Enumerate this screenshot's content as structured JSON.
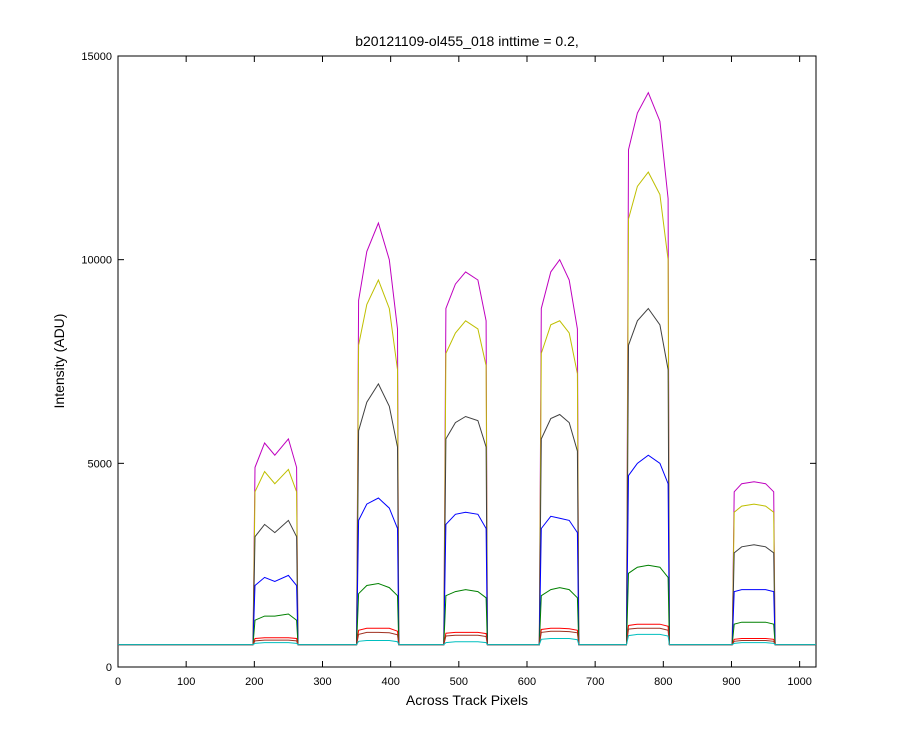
{
  "chart_data": {
    "type": "line",
    "title": "b20121109-ol455_018 inttime = 0.2,",
    "xlabel": "Across Track Pixels",
    "ylabel": "Intensity (ADU)",
    "x": [
      0,
      198,
      201,
      215,
      230,
      250,
      262,
      264,
      350,
      353,
      365,
      382,
      398,
      410,
      412,
      478,
      481,
      495,
      510,
      528,
      540,
      542,
      618,
      621,
      635,
      648,
      662,
      674,
      676,
      746,
      749,
      762,
      778,
      795,
      807,
      809,
      901,
      904,
      915,
      933,
      950,
      962,
      964,
      1024
    ],
    "series": [
      {
        "color": "#bf00bf",
        "values": [
          550,
          550,
          4900,
          5500,
          5200,
          5600,
          4900,
          550,
          550,
          9000,
          10200,
          10900,
          10000,
          8300,
          550,
          550,
          8800,
          9400,
          9700,
          9500,
          8500,
          550,
          550,
          8800,
          9700,
          10000,
          9500,
          8300,
          550,
          550,
          12700,
          13600,
          14100,
          13400,
          11500,
          550,
          550,
          4300,
          4500,
          4550,
          4500,
          4300,
          550,
          550
        ]
      },
      {
        "color": "#bfbf00",
        "values": [
          550,
          550,
          4300,
          4800,
          4500,
          4850,
          4300,
          550,
          550,
          7900,
          8900,
          9500,
          8800,
          7300,
          550,
          550,
          7700,
          8200,
          8500,
          8300,
          7400,
          550,
          550,
          7700,
          8400,
          8500,
          8200,
          7200,
          550,
          550,
          11000,
          11800,
          12150,
          11600,
          10000,
          550,
          550,
          3800,
          3950,
          4000,
          3950,
          3800,
          550,
          550
        ]
      },
      {
        "color": "#404040",
        "values": [
          550,
          550,
          3200,
          3500,
          3300,
          3600,
          3200,
          550,
          550,
          5800,
          6500,
          6950,
          6400,
          5400,
          550,
          550,
          5600,
          6000,
          6150,
          6050,
          5400,
          550,
          550,
          5600,
          6100,
          6200,
          6000,
          5300,
          550,
          550,
          7900,
          8500,
          8800,
          8400,
          7300,
          550,
          550,
          2800,
          2950,
          3000,
          2950,
          2800,
          550,
          550
        ]
      },
      {
        "color": "#0000ff",
        "values": [
          550,
          550,
          2000,
          2200,
          2100,
          2250,
          2000,
          550,
          550,
          3600,
          4000,
          4150,
          3900,
          3400,
          550,
          550,
          3500,
          3750,
          3800,
          3750,
          3400,
          550,
          550,
          3400,
          3700,
          3650,
          3600,
          3300,
          550,
          550,
          4700,
          5000,
          5200,
          5000,
          4500,
          550,
          550,
          1850,
          1900,
          1900,
          1900,
          1850,
          550,
          550
        ]
      },
      {
        "color": "#008000",
        "values": [
          550,
          550,
          1150,
          1250,
          1250,
          1300,
          1150,
          550,
          550,
          1800,
          2000,
          2050,
          1950,
          1750,
          550,
          550,
          1750,
          1850,
          1900,
          1850,
          1700,
          550,
          550,
          1750,
          1900,
          1950,
          1900,
          1700,
          550,
          550,
          2300,
          2450,
          2500,
          2450,
          2200,
          550,
          550,
          1050,
          1100,
          1100,
          1100,
          1050,
          550,
          550
        ]
      },
      {
        "color": "#ff0000",
        "values": [
          550,
          550,
          700,
          720,
          720,
          720,
          700,
          550,
          550,
          900,
          950,
          950,
          950,
          880,
          550,
          550,
          830,
          850,
          850,
          850,
          820,
          550,
          550,
          920,
          950,
          950,
          940,
          900,
          550,
          550,
          1020,
          1050,
          1050,
          1050,
          1000,
          550,
          550,
          680,
          700,
          700,
          700,
          680,
          550,
          550
        ]
      },
      {
        "color": "#a03020",
        "values": [
          550,
          550,
          640,
          660,
          660,
          660,
          640,
          550,
          550,
          800,
          850,
          850,
          840,
          790,
          550,
          550,
          760,
          780,
          780,
          780,
          750,
          550,
          550,
          850,
          880,
          880,
          870,
          840,
          550,
          550,
          930,
          950,
          950,
          950,
          900,
          550,
          550,
          630,
          650,
          650,
          650,
          630,
          550,
          550
        ]
      },
      {
        "color": "#00bfbf",
        "values": [
          550,
          550,
          580,
          600,
          600,
          600,
          580,
          550,
          550,
          630,
          650,
          650,
          650,
          620,
          550,
          550,
          600,
          620,
          620,
          620,
          600,
          550,
          550,
          680,
          700,
          700,
          700,
          670,
          550,
          550,
          770,
          800,
          800,
          800,
          760,
          550,
          550,
          580,
          600,
          600,
          600,
          580,
          550,
          550
        ]
      }
    ],
    "xlim": [
      0,
      1024
    ],
    "xticks": [
      0,
      100,
      200,
      300,
      400,
      500,
      600,
      700,
      800,
      900,
      1000
    ],
    "ylim": [
      0,
      15000
    ],
    "yticks": [
      0,
      5000,
      10000,
      15000
    ]
  }
}
